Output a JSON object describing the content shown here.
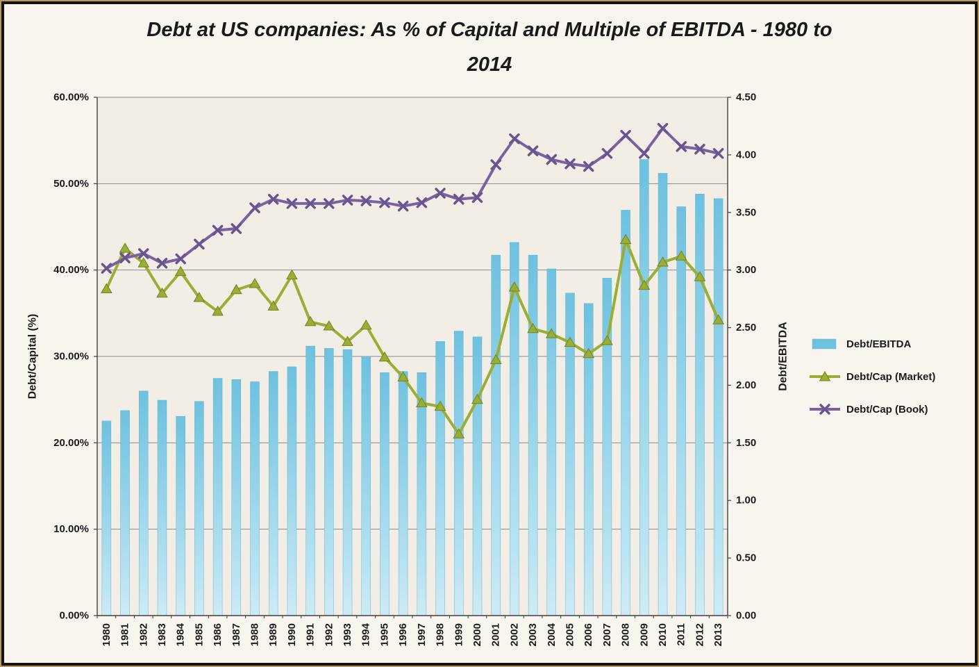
{
  "header": {
    "line1": "Debt at US companies: As % of Capital and Multiple of EBITDA - 1980 to",
    "line2": "2014"
  },
  "chart_data": {
    "type": "bar",
    "title": "Debt at US companies: As % of Capital and Multiple of EBITDA - 1980 to 2014",
    "categories": [
      "1980",
      "1981",
      "1982",
      "1983",
      "1984",
      "1985",
      "1986",
      "1987",
      "1988",
      "1989",
      "1990",
      "1991",
      "1992",
      "1993",
      "1994",
      "1995",
      "1996",
      "1997",
      "1998",
      "1999",
      "2000",
      "2001",
      "2002",
      "2003",
      "2004",
      "2005",
      "2006",
      "2007",
      "2008",
      "2009",
      "2010",
      "2011",
      "2012",
      "2013"
    ],
    "left_axis": {
      "label": "Debt/Capital (%)",
      "min": 0,
      "max": 60,
      "step": 10,
      "ticks": [
        "0.00%",
        "10.00%",
        "20.00%",
        "30.00%",
        "40.00%",
        "50.00%",
        "60.00%"
      ]
    },
    "right_axis": {
      "label": "Debt/EBITDA",
      "min": 0,
      "max": 4.5,
      "step": 0.5,
      "ticks": [
        "0.00",
        "0.50",
        "1.00",
        "1.50",
        "2.00",
        "2.50",
        "3.00",
        "3.50",
        "4.00",
        "4.50"
      ]
    },
    "series": [
      {
        "name": "Debt/EBITDA",
        "type": "bar",
        "axis": "right",
        "color": "#6EC1DF",
        "color_light": "#CFEBF5",
        "values": [
          1.69,
          1.78,
          1.95,
          1.87,
          1.73,
          1.86,
          2.06,
          2.05,
          2.03,
          2.12,
          2.16,
          2.34,
          2.32,
          2.31,
          2.25,
          2.11,
          2.12,
          2.11,
          2.38,
          2.47,
          2.42,
          3.13,
          3.24,
          3.13,
          3.01,
          2.8,
          2.71,
          2.93,
          3.52,
          3.96,
          3.84,
          3.55,
          3.66,
          3.62
        ]
      },
      {
        "name": "Debt/Cap (Market)",
        "type": "line",
        "marker": "triangle",
        "axis": "left",
        "color": "#9AAD34",
        "marker_stroke": "#73831F",
        "values": [
          37.8,
          42.5,
          40.8,
          37.3,
          39.8,
          36.8,
          35.2,
          37.7,
          38.4,
          35.8,
          39.4,
          34.0,
          33.5,
          31.7,
          33.6,
          29.9,
          27.6,
          24.6,
          24.2,
          21.0,
          25.0,
          29.6,
          38.0,
          33.2,
          32.6,
          31.6,
          30.3,
          31.8,
          43.5,
          38.2,
          40.9,
          41.6,
          39.2,
          34.2
        ]
      },
      {
        "name": "Debt/Cap (Book)",
        "type": "line",
        "marker": "x",
        "axis": "left",
        "color": "#7C61A1",
        "marker_stroke": "#6B5390",
        "values": [
          40.2,
          41.4,
          41.9,
          40.8,
          41.3,
          43.0,
          44.6,
          44.8,
          47.2,
          48.2,
          47.7,
          47.7,
          47.7,
          48.1,
          48.0,
          47.8,
          47.4,
          47.8,
          48.9,
          48.2,
          48.4,
          52.2,
          55.2,
          53.8,
          52.8,
          52.3,
          52.0,
          53.5,
          55.6,
          53.5,
          56.4,
          54.3,
          54.0,
          53.5
        ]
      }
    ],
    "legend": [
      "Debt/EBITDA",
      "Debt/Cap (Market)",
      "Debt/Cap (Book)"
    ],
    "legend_position": "right",
    "grid": "horizontal",
    "colors": {
      "page_bg": "#f8f5ef",
      "plot_bg": "#f2eee6",
      "gridline": "#8a8a8a",
      "axis": "#3f3f3f",
      "text": "#1b1b1b"
    }
  }
}
